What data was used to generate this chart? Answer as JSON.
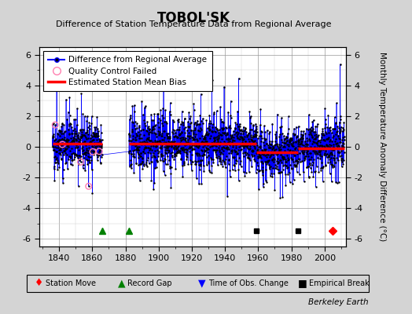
{
  "title": "TOBOL'SK",
  "subtitle": "Difference of Station Temperature Data from Regional Average",
  "ylabel": "Monthly Temperature Anomaly Difference (°C)",
  "xlabel_ticks": [
    1840,
    1860,
    1880,
    1900,
    1920,
    1940,
    1960,
    1980,
    2000
  ],
  "yticks": [
    -6,
    -4,
    -2,
    0,
    2,
    4,
    6
  ],
  "ylim": [
    -6.5,
    6.5
  ],
  "xlim": [
    1828,
    2013
  ],
  "bg_color": "#d4d4d4",
  "plot_bg_color": "#ffffff",
  "gap_start": 1866,
  "gap_end": 1882,
  "segments": [
    {
      "start": 1836.0,
      "end": 1866.0,
      "bias": 0.18
    },
    {
      "start": 1882.0,
      "end": 1959.0,
      "bias": 0.18
    },
    {
      "start": 1959.0,
      "end": 1984.0,
      "bias": -0.35
    },
    {
      "start": 1984.0,
      "end": 2012.0,
      "bias": -0.12
    }
  ],
  "station_moves": [
    2005
  ],
  "record_gaps": [
    1866,
    1882
  ],
  "obs_changes": [],
  "empirical_breaks": [
    1959,
    1984
  ],
  "watermark": "Berkeley Earth",
  "seed": 42,
  "noise_std": 0.85,
  "spike_prob": 0.03,
  "spike_extra": 1.8
}
